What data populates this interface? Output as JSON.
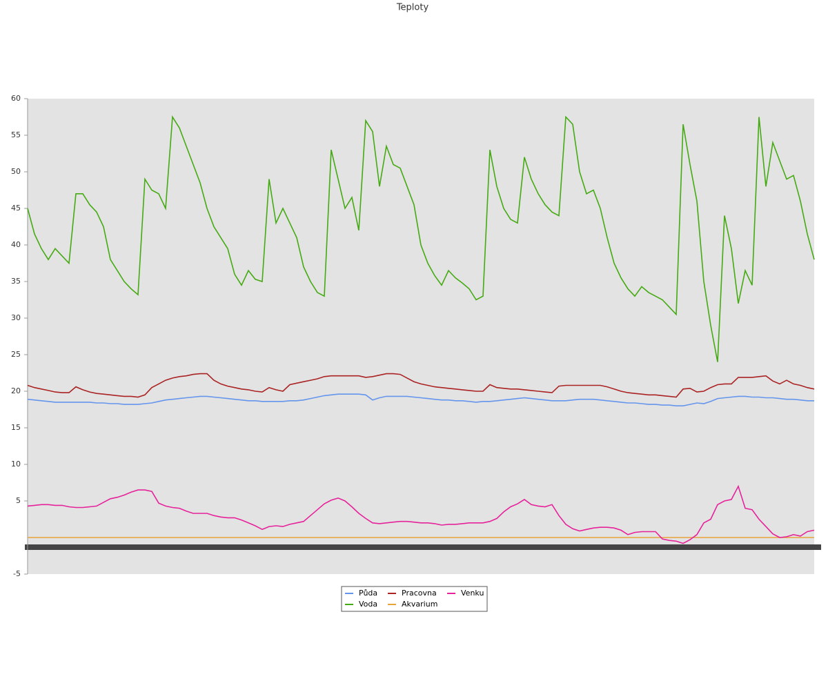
{
  "chart_data": {
    "type": "line",
    "title": "Teploty",
    "categories": [
      null,
      null,
      null,
      null,
      null,
      null,
      null,
      null,
      null,
      null,
      null,
      null,
      null,
      null,
      null,
      null,
      null,
      null,
      null,
      null,
      null,
      null,
      null,
      null,
      null,
      null,
      null,
      null,
      null,
      null,
      null,
      null,
      null,
      null,
      null,
      null,
      null,
      null,
      null,
      null,
      null,
      null,
      null,
      null,
      null,
      null,
      null,
      null,
      null,
      null,
      null,
      null,
      null,
      null,
      null,
      null,
      null,
      null,
      null,
      null,
      null,
      null,
      null,
      null,
      null,
      null,
      null,
      null,
      null,
      null,
      null,
      null,
      null,
      null,
      null,
      null,
      null,
      null,
      null,
      null,
      null,
      null,
      null,
      null,
      null,
      null,
      null,
      null,
      null,
      null,
      null,
      null,
      null,
      null,
      null,
      null,
      null,
      null,
      null,
      null,
      null,
      null,
      null,
      null,
      null,
      null,
      null,
      null,
      null,
      null,
      null,
      null,
      null,
      null,
      null
    ],
    "ylim": [
      -5,
      60
    ],
    "yticks": [
      -5,
      5,
      10,
      15,
      20,
      25,
      30,
      35,
      40,
      45,
      50,
      55,
      60
    ],
    "series": [
      {
        "name": "Půda",
        "color": "#6495ed",
        "values": [
          18.9,
          18.8,
          18.7,
          18.6,
          18.5,
          18.5,
          18.5,
          18.5,
          18.5,
          18.5,
          18.4,
          18.4,
          18.3,
          18.3,
          18.2,
          18.2,
          18.2,
          18.3,
          18.4,
          18.6,
          18.8,
          18.9,
          19,
          19.1,
          19.2,
          19.3,
          19.3,
          19.2,
          19.1,
          19,
          18.9,
          18.8,
          18.7,
          18.7,
          18.6,
          18.6,
          18.6,
          18.6,
          18.7,
          18.7,
          18.8,
          19,
          19.2,
          19.4,
          19.5,
          19.6,
          19.6,
          19.6,
          19.6,
          19.5,
          18.8,
          19.1,
          19.3,
          19.3,
          19.3,
          19.3,
          19.2,
          19.1,
          19,
          18.9,
          18.8,
          18.8,
          18.7,
          18.7,
          18.6,
          18.5,
          18.6,
          18.6,
          18.7,
          18.8,
          18.9,
          19,
          19.1,
          19,
          18.9,
          18.8,
          18.7,
          18.7,
          18.7,
          18.8,
          18.9,
          18.9,
          18.9,
          18.8,
          18.7,
          18.6,
          18.5,
          18.4,
          18.4,
          18.3,
          18.2,
          18.2,
          18.1,
          18.1,
          18,
          18,
          18.2,
          18.4,
          18.3,
          18.6,
          19,
          19.1,
          19.2,
          19.3,
          19.3,
          19.2,
          19.2,
          19.1,
          19.1,
          19,
          18.9,
          18.9,
          18.8,
          18.7,
          18.7
        ]
      },
      {
        "name": "Voda",
        "color": "#44aa11",
        "values": [
          45,
          41.5,
          39.5,
          38,
          39.5,
          38.5,
          37.5,
          47,
          47,
          45.5,
          44.5,
          42.5,
          38,
          36.5,
          35,
          34,
          33.2,
          49,
          47.5,
          47,
          45,
          57.5,
          56,
          53.5,
          51,
          48.5,
          45,
          42.5,
          41,
          39.5,
          36,
          34.5,
          36.5,
          35.3,
          35,
          49,
          43,
          45,
          43,
          41,
          37,
          35,
          33.5,
          33,
          53,
          49,
          45,
          46.5,
          42,
          57,
          55.5,
          48,
          53.5,
          51,
          50.5,
          48,
          45.5,
          40,
          37.5,
          35.8,
          34.5,
          36.5,
          35.5,
          34.8,
          34,
          32.5,
          33,
          53,
          48,
          45,
          43.5,
          43,
          52,
          49,
          47,
          45.5,
          44.5,
          44,
          57.5,
          56.5,
          50,
          47,
          47.5,
          45,
          41,
          37.5,
          35.5,
          34,
          33,
          34.3,
          33.5,
          33,
          32.5,
          31.5,
          30.5,
          56.5,
          51,
          46,
          35,
          29,
          24,
          44,
          39.5,
          32,
          36.5,
          34.5,
          57.5,
          48,
          54,
          51.5,
          49,
          49.5,
          46,
          41.5,
          38
        ]
      },
      {
        "name": "Pracovna",
        "color": "#aa2222",
        "values": [
          20.8,
          20.5,
          20.3,
          20.1,
          19.9,
          19.8,
          19.8,
          20.6,
          20.2,
          19.9,
          19.7,
          19.6,
          19.5,
          19.4,
          19.3,
          19.3,
          19.2,
          19.5,
          20.5,
          21,
          21.5,
          21.8,
          22,
          22.1,
          22.3,
          22.4,
          22.4,
          21.5,
          21,
          20.7,
          20.5,
          20.3,
          20.2,
          20,
          19.9,
          20.5,
          20.2,
          20,
          20.9,
          21.1,
          21.3,
          21.5,
          21.7,
          22,
          22.1,
          22.1,
          22.1,
          22.1,
          22.1,
          21.9,
          22,
          22.2,
          22.4,
          22.4,
          22.3,
          21.8,
          21.3,
          21,
          20.8,
          20.6,
          20.5,
          20.4,
          20.3,
          20.2,
          20.1,
          20,
          20,
          20.9,
          20.5,
          20.4,
          20.3,
          20.3,
          20.2,
          20.1,
          20,
          19.9,
          19.8,
          20.7,
          20.8,
          20.8,
          20.8,
          20.8,
          20.8,
          20.8,
          20.6,
          20.3,
          20,
          19.8,
          19.7,
          19.6,
          19.5,
          19.5,
          19.4,
          19.3,
          19.2,
          20.3,
          20.4,
          19.9,
          20,
          20.5,
          20.9,
          21,
          21,
          21.9,
          21.9,
          21.9,
          22,
          22.1,
          21.4,
          21,
          21.5,
          21,
          20.8,
          20.5,
          20.3
        ]
      },
      {
        "name": "Akvarium",
        "color": "#e8a23a",
        "values": [
          0,
          0,
          0,
          0,
          0,
          0,
          0,
          0,
          0,
          0,
          0,
          0,
          0,
          0,
          0,
          0,
          0,
          0,
          0,
          0,
          0,
          0,
          0,
          0,
          0,
          0,
          0,
          0,
          0,
          0,
          0,
          0,
          0,
          0,
          0,
          0,
          0,
          0,
          0,
          0,
          0,
          0,
          0,
          0,
          0,
          0,
          0,
          0,
          0,
          0,
          0,
          0,
          0,
          0,
          0,
          0,
          0,
          0,
          0,
          0,
          0,
          0,
          0,
          0,
          0,
          0,
          0,
          0,
          0,
          0,
          0,
          0,
          0,
          0,
          0,
          0,
          0,
          0,
          0,
          0,
          0,
          0,
          0,
          0,
          0,
          0,
          0,
          0,
          0,
          0,
          0,
          0,
          0,
          0,
          0,
          0,
          0,
          0,
          0,
          0,
          0,
          0,
          0,
          0,
          0,
          0,
          0,
          0,
          0,
          0,
          0,
          0,
          0,
          0,
          0
        ]
      },
      {
        "name": "Venku",
        "color": "#e6229a",
        "values": [
          4.3,
          4.4,
          4.5,
          4.5,
          4.4,
          4.4,
          4.2,
          4.1,
          4.1,
          4.2,
          4.3,
          4.8,
          5.3,
          5.5,
          5.8,
          6.2,
          6.5,
          6.5,
          6.3,
          4.7,
          4.3,
          4.1,
          4,
          3.6,
          3.3,
          3.3,
          3.3,
          3,
          2.8,
          2.7,
          2.7,
          2.4,
          2,
          1.6,
          1.1,
          1.5,
          1.6,
          1.5,
          1.8,
          2,
          2.2,
          3,
          3.8,
          4.6,
          5.1,
          5.4,
          5,
          4.2,
          3.3,
          2.6,
          2,
          1.9,
          2,
          2.1,
          2.2,
          2.2,
          2.1,
          2,
          2,
          1.9,
          1.7,
          1.8,
          1.8,
          1.9,
          2,
          2,
          2,
          2.2,
          2.6,
          3.5,
          4.2,
          4.6,
          5.2,
          4.5,
          4.3,
          4.2,
          4.5,
          3,
          1.8,
          1.2,
          0.9,
          1.1,
          1.3,
          1.4,
          1.4,
          1.3,
          1,
          0.4,
          0.7,
          0.8,
          0.8,
          0.8,
          -0.2,
          -0.4,
          -0.5,
          -0.8,
          -0.3,
          0.4,
          2,
          2.5,
          4.5,
          5,
          5.2,
          7,
          4,
          3.8,
          2.5,
          1.5,
          0.5,
          0,
          0.1,
          0.4,
          0.2,
          0.8,
          1
        ]
      }
    ]
  }
}
